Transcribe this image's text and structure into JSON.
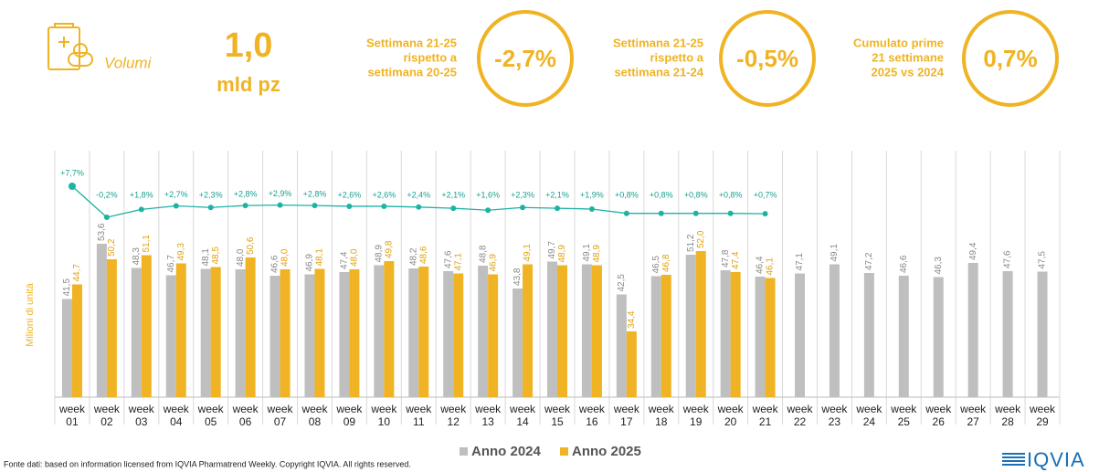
{
  "header": {
    "label": "Volumi",
    "value": "1,0",
    "unit": "mld pz",
    "kpis": [
      {
        "text": [
          "Settimana 21-25",
          "rispetto a",
          "settimana 20-25"
        ],
        "value": "-2,7%"
      },
      {
        "text": [
          "Settimana 21-25",
          "rispetto a",
          "settimana 21-24"
        ],
        "value": "-0,5%"
      },
      {
        "text": [
          "Cumulato prime",
          "21 settimane",
          "2025 vs 2024"
        ],
        "value": "0,7%"
      }
    ]
  },
  "chart_data": [
    {
      "type": "bar",
      "y_label": "Milioni di unità",
      "categories": [
        "week 01",
        "week 02",
        "week 03",
        "week 04",
        "week 05",
        "week 06",
        "week 07",
        "week 08",
        "week 09",
        "week 10",
        "week 11",
        "week 12",
        "week 13",
        "week 14",
        "week 15",
        "week 16",
        "week 17",
        "week 18",
        "week 19",
        "week 20",
        "week 21",
        "week 22",
        "week 23",
        "week 24",
        "week 25",
        "week 26",
        "week 27",
        "week 28",
        "week 29"
      ],
      "series": [
        {
          "name": "Anno 2024",
          "color": "#bfbfbf",
          "values": [
            41.5,
            53.6,
            48.3,
            46.7,
            48.1,
            48.0,
            46.6,
            46.9,
            47.4,
            48.9,
            48.2,
            47.6,
            48.8,
            43.8,
            49.7,
            49.1,
            42.5,
            46.5,
            51.2,
            47.8,
            46.4,
            47.1,
            49.1,
            47.2,
            46.6,
            46.3,
            49.4,
            47.6,
            47.5
          ],
          "value_labels": [
            "41,5",
            "53,6",
            "48,3",
            "46,7",
            "48,1",
            "48,0",
            "46,6",
            "46,9",
            "47,4",
            "48,9",
            "48,2",
            "47,6",
            "48,8",
            "43,8",
            "49,7",
            "49,1",
            "42,5",
            "46,5",
            "51,2",
            "47,8",
            "46,4",
            "47,1",
            "49,1",
            "47,2",
            "46,6",
            "46,3",
            "49,4",
            "47,6",
            "47,5"
          ]
        },
        {
          "name": "Anno 2025",
          "color": "#f0b323",
          "values": [
            44.7,
            50.2,
            51.1,
            49.3,
            48.5,
            50.6,
            48.0,
            48.1,
            48.0,
            49.8,
            48.6,
            47.1,
            46.9,
            49.1,
            48.9,
            48.9,
            34.4,
            46.8,
            52.0,
            47.4,
            46.1,
            null,
            null,
            null,
            null,
            null,
            null,
            null,
            null
          ],
          "value_labels": [
            "44,7",
            "50,2",
            "51,1",
            "49,3",
            "48,5",
            "50,6",
            "48,0",
            "48,1",
            "48,0",
            "49,8",
            "48,6",
            "47,1",
            "46,9",
            "49,1",
            "48,9",
            "48,9",
            "34,4",
            "46,8",
            "52,0",
            "47,4",
            "46,1",
            null,
            null,
            null,
            null,
            null,
            null,
            null,
            null
          ]
        }
      ]
    },
    {
      "type": "line",
      "color": "#1db3a3",
      "values": [
        7.7,
        -0.2,
        1.8,
        2.7,
        2.3,
        2.8,
        2.9,
        2.8,
        2.6,
        2.6,
        2.4,
        2.1,
        1.6,
        2.3,
        2.1,
        1.9,
        0.8,
        0.8,
        0.8,
        0.8,
        0.7,
        null,
        null,
        null,
        null,
        null,
        null,
        null,
        null
      ],
      "value_labels": [
        "+7,7%",
        "-0,2%",
        "+1,8%",
        "+2,7%",
        "+2,3%",
        "+2,8%",
        "+2,9%",
        "+2,8%",
        "+2,6%",
        "+2,6%",
        "+2,4%",
        "+2,1%",
        "+1,6%",
        "+2,3%",
        "+2,1%",
        "+1,9%",
        "+0,8%",
        "+0,8%",
        "+0,8%",
        "+0,8%",
        "+0,7%",
        null,
        null,
        null,
        null,
        null,
        null,
        null,
        null
      ]
    }
  ],
  "footer": {
    "source": "Fonte dati: based on information licensed from IQVIA Pharmatrend Weekly. Copyright IQVIA. All rights reserved.",
    "logo": "IQVIA"
  }
}
